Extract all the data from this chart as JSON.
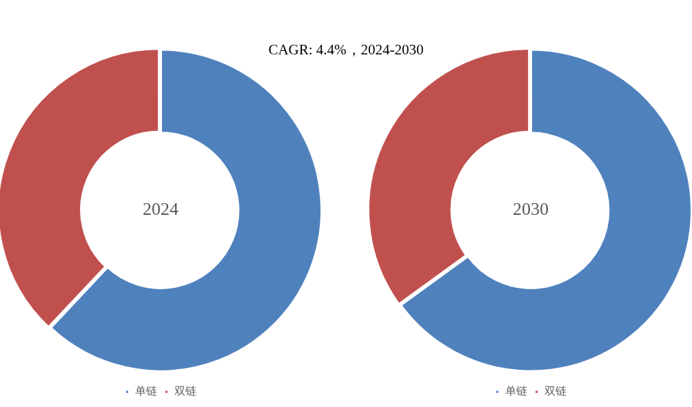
{
  "chart_data": [
    {
      "type": "donut",
      "title": "2024",
      "categories": [
        "单链",
        "双链"
      ],
      "values": [
        62,
        38
      ],
      "colors": [
        "#4f81bd",
        "#c0504d"
      ],
      "legend": "bottom",
      "annotations": [
        "CAGR:   4.4%，2024-2030"
      ]
    },
    {
      "type": "donut",
      "title": "2030",
      "categories": [
        "单链",
        "双链"
      ],
      "values": [
        65,
        35
      ],
      "colors": [
        "#4f81bd",
        "#c0504d"
      ],
      "legend": "bottom"
    }
  ]
}
